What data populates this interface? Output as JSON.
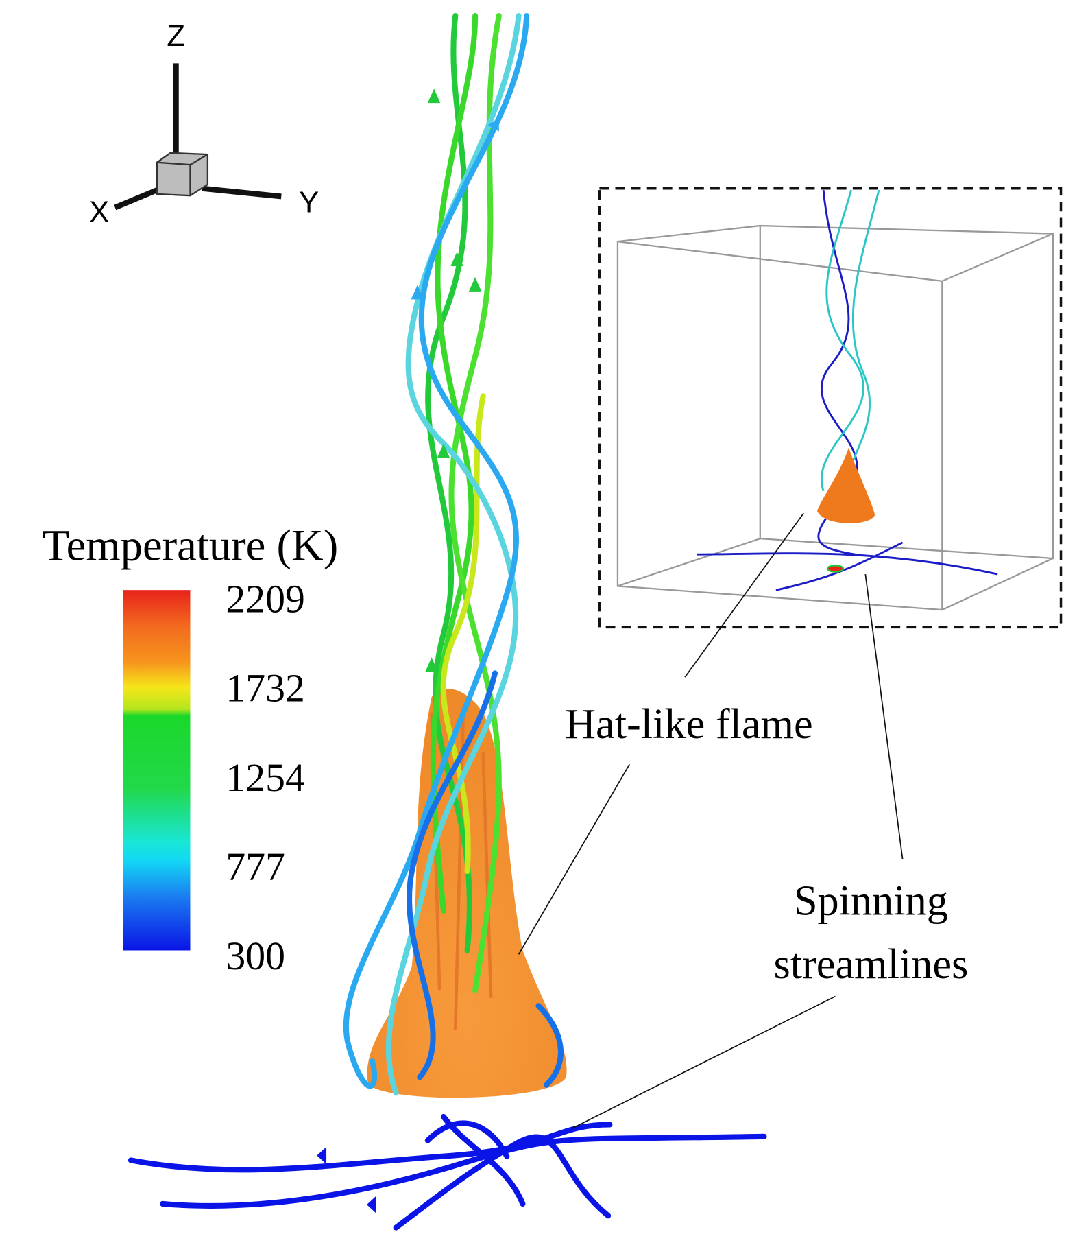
{
  "axes_triad": {
    "z": "Z",
    "x": "X",
    "y": "Y"
  },
  "colorbar": {
    "title": "Temperature (K)",
    "ticks": [
      2209,
      1732,
      1254,
      777,
      300
    ]
  },
  "annotations": {
    "flame": "Hat-like flame",
    "streamlines": [
      "Spinning",
      "streamlines"
    ]
  }
}
